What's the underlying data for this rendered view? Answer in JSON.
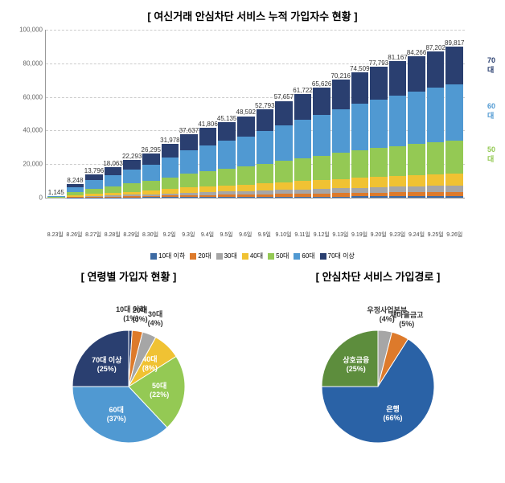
{
  "stacked_chart": {
    "title": "[  여신거래 안심차단 서비스 누적 가입자수 현황  ]",
    "title_fontsize": 13,
    "background_color": "#ffffff",
    "ylim": [
      0,
      100000
    ],
    "ytick_step": 20000,
    "yticks": [
      0,
      20000,
      40000,
      60000,
      80000,
      100000
    ],
    "grid_color": "#cccccc",
    "series_order": [
      "10대 이하",
      "20대",
      "30대",
      "40대",
      "50대",
      "60대",
      "70대 이상"
    ],
    "colors": {
      "10대 이하": "#3d6aa3",
      "20대": "#dd7a2b",
      "30대": "#a6a6a6",
      "40대": "#f0c233",
      "50대": "#94c954",
      "60대": "#5099d2",
      "70대 이상": "#2a3f70"
    },
    "categories": [
      "8.23일",
      "8.26일",
      "8.27일",
      "8.28일",
      "8.29일",
      "8.30일",
      "9.2일",
      "9.3일",
      "9.4일",
      "9.5일",
      "9.6일",
      "9.9일",
      "9.10일",
      "9.11일",
      "9.12일",
      "9.13일",
      "9.19일",
      "9.20일",
      "9.23일",
      "9.24일",
      "9.25일",
      "9.26일"
    ],
    "dates": [
      "8.23",
      "8.26",
      "8.27",
      "8.28",
      "8.29",
      "8.30",
      "9.2",
      "9.3",
      "9.4",
      "9.5",
      "9.6",
      "9.9",
      "9.10",
      "9.11",
      "9.12",
      "9.13",
      "9.19",
      "9.20",
      "9.23",
      "9.24",
      "9.25",
      "9.26"
    ],
    "totals": [
      1145,
      8248,
      13796,
      18063,
      22293,
      26295,
      31978,
      37637,
      41806,
      45135,
      48592,
      52793,
      57657,
      61722,
      65626,
      70216,
      74509,
      77793,
      81167,
      84266,
      87202,
      89817
    ],
    "data": {
      "10대 이하": [
        11,
        82,
        138,
        181,
        223,
        263,
        320,
        376,
        418,
        451,
        486,
        528,
        577,
        617,
        656,
        702,
        745,
        778,
        812,
        843,
        872,
        898
      ],
      "20대": [
        34,
        247,
        414,
        542,
        669,
        789,
        959,
        1129,
        1254,
        1354,
        1458,
        1584,
        1730,
        1852,
        1969,
        2106,
        2235,
        2334,
        2435,
        2528,
        2616,
        2695
      ],
      "30대": [
        46,
        330,
        552,
        723,
        892,
        1052,
        1279,
        1505,
        1672,
        1805,
        1944,
        2112,
        2306,
        2469,
        2625,
        2809,
        2980,
        3112,
        3247,
        3371,
        3488,
        3593
      ],
      "40대": [
        92,
        660,
        1104,
        1445,
        1783,
        2104,
        2558,
        3011,
        3344,
        3611,
        3887,
        4223,
        4613,
        4938,
        5250,
        5617,
        5961,
        6223,
        6493,
        6741,
        6976,
        7185
      ],
      "50대": [
        252,
        1815,
        3035,
        3974,
        4904,
        5785,
        7035,
        8280,
        9197,
        9930,
        10690,
        11615,
        12685,
        13579,
        14438,
        15448,
        16392,
        17115,
        17857,
        18539,
        19185,
        19760
      ],
      "60대": [
        424,
        3052,
        5105,
        6683,
        8248,
        9729,
        11832,
        13926,
        15468,
        16700,
        17979,
        19534,
        21333,
        22837,
        24282,
        25980,
        27568,
        28783,
        30032,
        31178,
        32265,
        33232
      ],
      "70대 이상": [
        286,
        2062,
        3449,
        4516,
        5573,
        6574,
        7995,
        9409,
        10452,
        11284,
        12148,
        13198,
        14414,
        15431,
        16407,
        17554,
        18627,
        19448,
        20292,
        21067,
        21801,
        22454
      ]
    },
    "side_labels": [
      {
        "text": "70대",
        "pct_top": 16,
        "color": "#2a3f70"
      },
      {
        "text": "60대",
        "pct_top": 43,
        "color": "#5099d2"
      },
      {
        "text": "50대",
        "pct_top": 69,
        "color": "#94c954"
      }
    ]
  },
  "pie_left": {
    "title": "[  연령별 가입자 현황  ]",
    "slices": [
      {
        "label": "10대 이하",
        "pct": 1,
        "color": "#2a3f70",
        "text_out": true
      },
      {
        "label": "20대",
        "pct": 3,
        "color": "#dd7a2b",
        "text_out": true
      },
      {
        "label": "30대",
        "pct": 4,
        "color": "#a6a6a6",
        "text_out": true
      },
      {
        "label": "40대",
        "pct": 8,
        "color": "#f0c233",
        "text_out": false
      },
      {
        "label": "50대",
        "pct": 22,
        "color": "#94c954",
        "text_out": false
      },
      {
        "label": "60대",
        "pct": 37,
        "color": "#5099d2",
        "text_out": false
      },
      {
        "label": "70대 이상",
        "pct": 25,
        "color": "#2a3f70",
        "text_out": false
      }
    ]
  },
  "pie_right": {
    "title": "[  안심차단 서비스 가입경로  ]",
    "slices": [
      {
        "label": "우정사업본부",
        "pct": 4,
        "color": "#a6a6a6",
        "text_out": true
      },
      {
        "label": "새마을금고",
        "pct": 5,
        "color": "#dd7a2b",
        "text_out": true
      },
      {
        "label": "은행",
        "pct": 66,
        "color": "#2a62a6",
        "text_out": false
      },
      {
        "label": "상호금융",
        "pct": 25,
        "color": "#5d8d3d",
        "text_out": false
      }
    ]
  }
}
